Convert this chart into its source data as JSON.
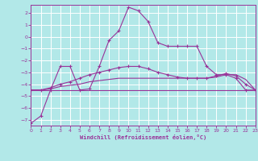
{
  "background_color": "#b2e8e8",
  "grid_color": "#ffffff",
  "line_color": "#993399",
  "xlabel": "Windchill (Refroidissement éolien,°C)",
  "xlim": [
    0,
    23
  ],
  "ylim": [
    -7.5,
    2.7
  ],
  "xticks": [
    0,
    1,
    2,
    3,
    4,
    5,
    6,
    7,
    8,
    9,
    10,
    11,
    12,
    13,
    14,
    15,
    16,
    17,
    18,
    19,
    20,
    21,
    22,
    23
  ],
  "yticks": [
    -7,
    -6,
    -5,
    -4,
    -3,
    -2,
    -1,
    0,
    1,
    2
  ],
  "line1_x": [
    0,
    1,
    2,
    3,
    4,
    5,
    6,
    7,
    8,
    9,
    10,
    11,
    12,
    13,
    14,
    15,
    16,
    17,
    18,
    19,
    20,
    21,
    22,
    23
  ],
  "line1_y": [
    -7.3,
    -6.7,
    -4.5,
    -2.5,
    -2.5,
    -4.5,
    -4.4,
    -2.5,
    -0.3,
    0.5,
    2.5,
    2.2,
    1.3,
    -0.5,
    -0.8,
    -0.8,
    -0.8,
    -0.8,
    -2.5,
    -3.2,
    -3.2,
    -3.5,
    -4.5,
    -4.5
  ],
  "line2_x": [
    0,
    1,
    2,
    3,
    4,
    5,
    6,
    7,
    8,
    9,
    10,
    11,
    12,
    13,
    14,
    15,
    16,
    17,
    18,
    19,
    20,
    21,
    22,
    23
  ],
  "line2_y": [
    -4.5,
    -4.5,
    -4.5,
    -4.5,
    -4.5,
    -4.5,
    -4.5,
    -4.5,
    -4.5,
    -4.5,
    -4.5,
    -4.5,
    -4.5,
    -4.5,
    -4.5,
    -4.5,
    -4.5,
    -4.5,
    -4.5,
    -4.5,
    -4.5,
    -4.5,
    -4.5,
    -4.5
  ],
  "line3_x": [
    0,
    1,
    2,
    3,
    4,
    5,
    6,
    7,
    8,
    9,
    10,
    11,
    12,
    13,
    14,
    15,
    16,
    17,
    18,
    19,
    20,
    21,
    22,
    23
  ],
  "line3_y": [
    -4.5,
    -4.5,
    -4.4,
    -4.2,
    -4.1,
    -4.0,
    -3.8,
    -3.7,
    -3.6,
    -3.5,
    -3.5,
    -3.5,
    -3.5,
    -3.5,
    -3.5,
    -3.5,
    -3.5,
    -3.5,
    -3.5,
    -3.4,
    -3.2,
    -3.2,
    -3.6,
    -4.5
  ],
  "line4_x": [
    0,
    1,
    2,
    3,
    4,
    5,
    6,
    7,
    8,
    9,
    10,
    11,
    12,
    13,
    14,
    15,
    16,
    17,
    18,
    19,
    20,
    21,
    22,
    23
  ],
  "line4_y": [
    -4.5,
    -4.5,
    -4.3,
    -4.0,
    -3.8,
    -3.5,
    -3.2,
    -3.0,
    -2.8,
    -2.6,
    -2.5,
    -2.5,
    -2.7,
    -3.0,
    -3.2,
    -3.4,
    -3.5,
    -3.5,
    -3.5,
    -3.3,
    -3.1,
    -3.3,
    -4.0,
    -4.5
  ],
  "figsize": [
    3.2,
    2.0
  ],
  "dpi": 100
}
